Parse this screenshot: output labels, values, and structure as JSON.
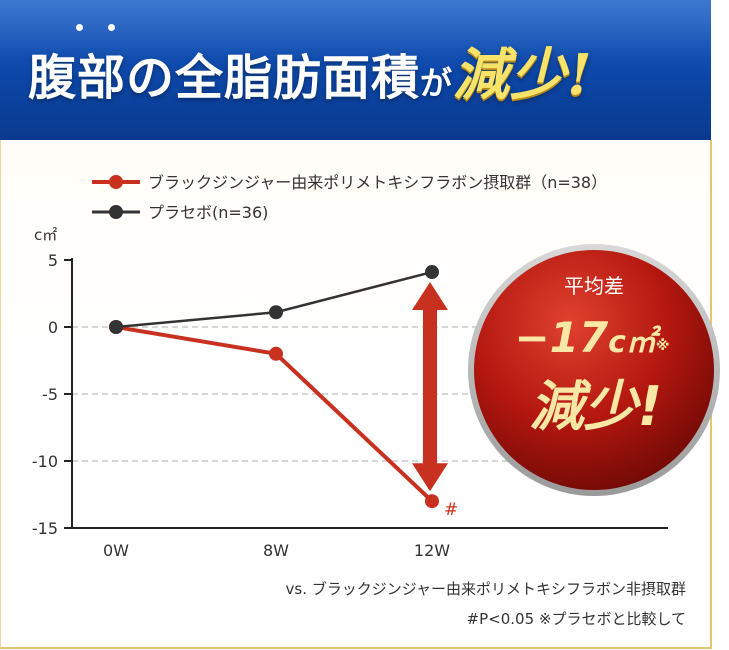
{
  "header": {
    "title_main": "腹部の全脂肪面積",
    "title_particle": "が",
    "title_accent": "減少!"
  },
  "badge": {
    "line1": "平均差",
    "line2": "−17",
    "unit": "c㎡",
    "mark": "※",
    "line3": "減少!"
  },
  "footnotes": {
    "line1": "vs. ブラックジンジャー由来ポリメトキシフラボン非摂取群",
    "line2": "#P<0.05 ※プラセボと比較して"
  },
  "colors": {
    "header_blue": "#0c46a6",
    "title_yellow": "#f7e36a",
    "series_red": "#c8301f",
    "series_gray": "#333333",
    "badge_red": "#b3170f",
    "panel_border": "#e2c56e"
  },
  "chart_data": {
    "type": "line",
    "categories": [
      "0W",
      "8W",
      "12W"
    ],
    "series": [
      {
        "name": "ブラックジンジャー由来ポリメトキシフラボン摂取群（n=38）",
        "values": [
          0,
          -2,
          -13
        ],
        "color": "#c8301f"
      },
      {
        "name": "プラセボ(n=36)",
        "values": [
          0,
          1.1,
          4.1
        ],
        "color": "#333333"
      }
    ],
    "ylabel": "c㎡",
    "ylim": [
      -15,
      5
    ],
    "yticks": [
      5,
      0,
      -5,
      -10,
      -15
    ],
    "ytick_labels": [
      "5",
      "0",
      "-5",
      "-10",
      "-15"
    ],
    "grid": true,
    "legend": "top",
    "annotation": "#",
    "difference_arrow": {
      "category": "12W",
      "from": -13,
      "to": 4.1
    }
  }
}
